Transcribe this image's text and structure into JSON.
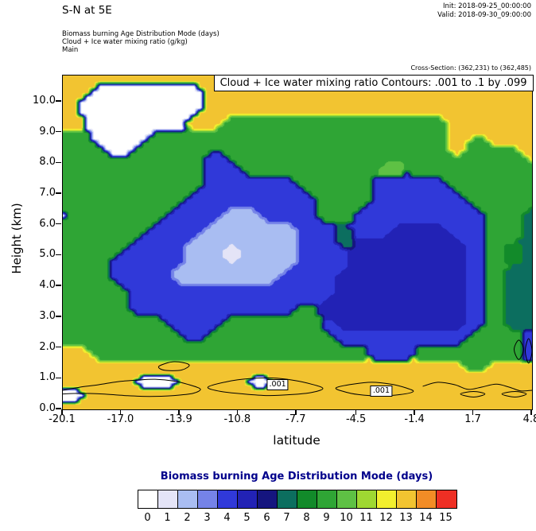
{
  "header": {
    "title": "S-N at 5E",
    "init": "Init: 2018-09-25_00:00:00",
    "valid": "Valid: 2018-09-30_09:00:00",
    "legend_lines": [
      "Biomass burning Age Distribution Mode   (days)",
      "Cloud + Ice water mixing ratio   (g/kg)",
      "Main"
    ],
    "cross_section": "Cross-Section: (362,231) to (362,485)"
  },
  "plot": {
    "inner_title": "Cloud + Ice water mixing ratio Contours: .001 to .1 by .099",
    "xlabel": "latitude",
    "ylabel": "Height (km)",
    "x_ticks": [
      "-20.1",
      "-17.0",
      "-13.9",
      "-10.8",
      "-7.7",
      "-4.5",
      "-1.4",
      "1.7",
      "4.8"
    ],
    "y_ticks": [
      "0.0",
      "1.0",
      "2.0",
      "3.0",
      "4.0",
      "5.0",
      "6.0",
      "7.0",
      "8.0",
      "9.0",
      "10.0"
    ]
  },
  "colorbar": {
    "title": "Biomass burning Age Distribution Mode  (days)",
    "title_color": "#00008b",
    "values": [
      "0",
      "1",
      "2",
      "3",
      "4",
      "5",
      "6",
      "7",
      "8",
      "9",
      "10",
      "11",
      "12",
      "13",
      "14",
      "15"
    ]
  },
  "chart_data": {
    "type": "filled-contour",
    "title": "Biomass burning Age Distribution Mode (days), S-N cross-section at 5E",
    "xlabel": "latitude",
    "ylabel": "Height (km)",
    "x_range": [
      -20.1,
      4.8
    ],
    "y_range": [
      0,
      10.85
    ],
    "levels": [
      0,
      1,
      2,
      3,
      4,
      5,
      6,
      7,
      8,
      9,
      10,
      11,
      12,
      13,
      14,
      15
    ],
    "palette": [
      "#ffffff",
      "#e4e4f7",
      "#a9bdf2",
      "#7583e8",
      "#3039d9",
      "#2222b5",
      "#15157f",
      "#0c6e5f",
      "#128a2a",
      "#2fa535",
      "#5ec144",
      "#9fd832",
      "#f2ef2e",
      "#f2c431",
      "#f28c26",
      "#ee2f24"
    ],
    "grid": {
      "lat_range": [
        -20.1,
        4.8
      ],
      "heights": [
        10.85,
        10.3,
        9.8,
        9.3,
        8.8,
        8.3,
        7.8,
        7.3,
        6.8,
        6.3,
        5.8,
        5.3,
        4.8,
        4.3,
        3.8,
        3.3,
        2.8,
        2.3,
        1.8,
        1.3,
        0.9,
        0.45,
        0
      ],
      "values": [
        [
          13,
          13,
          13,
          13,
          13,
          13,
          13,
          13,
          13,
          13,
          13,
          13,
          13,
          13,
          13,
          13,
          13,
          13,
          13,
          13,
          13,
          13,
          13,
          13,
          13,
          13
        ],
        [
          13,
          13,
          0,
          0,
          0,
          0,
          0,
          0,
          13,
          13,
          13,
          13,
          13,
          13,
          13,
          13,
          13,
          13,
          13,
          13,
          13,
          13,
          13,
          13,
          13,
          13
        ],
        [
          13,
          0,
          0,
          0,
          0,
          0,
          0,
          0,
          13,
          13,
          13,
          13,
          13,
          13,
          13,
          13,
          13,
          13,
          13,
          13,
          13,
          13,
          13,
          13,
          13,
          13
        ],
        [
          13,
          13,
          0,
          0,
          0,
          0,
          0,
          13,
          13,
          9,
          9,
          9,
          9,
          9,
          9,
          9,
          9,
          9,
          9,
          9,
          9,
          13,
          13,
          13,
          13,
          13
        ],
        [
          9,
          9,
          0,
          0,
          0,
          9,
          9,
          9,
          9,
          9,
          9,
          9,
          9,
          9,
          9,
          9,
          9,
          9,
          9,
          9,
          9,
          13,
          9,
          13,
          13,
          13
        ],
        [
          9,
          9,
          9,
          0,
          9,
          9,
          9,
          9,
          4,
          9,
          9,
          9,
          9,
          9,
          9,
          9,
          9,
          9,
          9,
          9,
          9,
          13,
          9,
          9,
          9,
          13
        ],
        [
          9,
          9,
          9,
          9,
          9,
          9,
          9,
          9,
          4,
          4,
          9,
          9,
          9,
          9,
          9,
          9,
          9,
          10,
          10,
          9,
          9,
          9,
          9,
          9,
          9,
          9
        ],
        [
          9,
          9,
          9,
          9,
          9,
          9,
          9,
          9,
          4,
          4,
          4,
          4,
          4,
          9,
          9,
          9,
          9,
          4,
          4,
          4,
          4,
          9,
          9,
          9,
          9,
          9
        ],
        [
          9,
          9,
          9,
          9,
          9,
          9,
          9,
          4,
          4,
          4,
          4,
          4,
          4,
          4,
          9,
          9,
          9,
          4,
          4,
          4,
          4,
          4,
          9,
          9,
          9,
          9
        ],
        [
          0,
          9,
          9,
          9,
          9,
          9,
          4,
          4,
          4,
          2,
          2,
          4,
          4,
          4,
          9,
          9,
          4,
          4,
          4,
          4,
          4,
          4,
          4,
          9,
          9,
          7
        ],
        [
          9,
          9,
          9,
          9,
          9,
          4,
          4,
          4,
          2,
          2,
          2,
          2,
          2,
          4,
          4,
          7,
          4,
          4,
          5,
          5,
          5,
          4,
          4,
          9,
          9,
          7
        ],
        [
          9,
          9,
          9,
          9,
          4,
          4,
          4,
          2,
          2,
          1,
          2,
          2,
          2,
          4,
          4,
          7,
          5,
          5,
          5,
          5,
          5,
          5,
          4,
          9,
          8,
          7
        ],
        [
          9,
          9,
          9,
          4,
          4,
          4,
          4,
          2,
          2,
          1,
          2,
          2,
          2,
          4,
          4,
          4,
          5,
          5,
          5,
          5,
          5,
          5,
          4,
          9,
          8,
          7
        ],
        [
          9,
          9,
          9,
          4,
          4,
          4,
          2,
          2,
          2,
          2,
          2,
          2,
          4,
          4,
          4,
          5,
          5,
          5,
          1,
          5,
          5,
          5,
          4,
          9,
          7,
          7
        ],
        [
          9,
          9,
          9,
          9,
          4,
          4,
          4,
          4,
          4,
          4,
          4,
          4,
          4,
          4,
          4,
          5,
          5,
          5,
          5,
          5,
          5,
          5,
          4,
          9,
          7,
          7
        ],
        [
          9,
          9,
          9,
          9,
          4,
          4,
          4,
          4,
          4,
          4,
          4,
          4,
          4,
          9,
          5,
          5,
          5,
          5,
          5,
          5,
          5,
          5,
          4,
          9,
          7,
          7
        ],
        [
          9,
          9,
          9,
          9,
          9,
          9,
          4,
          4,
          4,
          9,
          9,
          9,
          9,
          9,
          4,
          5,
          5,
          5,
          5,
          5,
          5,
          5,
          4,
          9,
          7,
          7
        ],
        [
          9,
          9,
          9,
          9,
          9,
          9,
          9,
          4,
          9,
          9,
          9,
          9,
          9,
          9,
          9,
          4,
          4,
          4,
          4,
          4,
          4,
          4,
          9,
          9,
          9,
          4
        ],
        [
          13,
          13,
          9,
          9,
          9,
          9,
          9,
          9,
          9,
          9,
          9,
          9,
          9,
          9,
          9,
          9,
          9,
          4,
          4,
          9,
          9,
          9,
          9,
          9,
          9,
          4
        ],
        [
          13,
          13,
          13,
          13,
          13,
          13,
          13,
          13,
          13,
          13,
          13,
          13,
          13,
          13,
          13,
          13,
          13,
          13,
          13,
          13,
          13,
          13,
          9,
          13,
          13,
          13
        ],
        [
          13,
          13,
          13,
          13,
          0,
          0,
          0,
          13,
          13,
          13,
          0,
          0,
          13,
          13,
          13,
          13,
          13,
          13,
          13,
          13,
          13,
          13,
          13,
          13,
          13,
          13
        ],
        [
          0,
          0,
          13,
          13,
          13,
          13,
          13,
          13,
          13,
          13,
          13,
          13,
          13,
          13,
          13,
          13,
          13,
          13,
          13,
          13,
          13,
          13,
          13,
          13,
          13,
          13
        ],
        [
          13,
          13,
          13,
          13,
          13,
          13,
          13,
          13,
          13,
          13,
          13,
          13,
          13,
          13,
          13,
          13,
          13,
          13,
          13,
          13,
          13,
          13,
          13,
          13,
          13,
          13
        ]
      ]
    },
    "contour_overlay": {
      "variable": "Cloud + Ice water mixing ratio (g/kg)",
      "levels_text": ".001 to .1 by .099",
      "paths": [
        {
          "closed": false,
          "pts": [
            [
              -20.1,
              0.62
            ],
            [
              -19.2,
              0.72
            ],
            [
              -18.2,
              0.8
            ],
            [
              -17.2,
              0.9
            ],
            [
              -16.2,
              0.95
            ],
            [
              -15.2,
              0.98
            ],
            [
              -14.2,
              0.92
            ],
            [
              -13.4,
              0.8
            ],
            [
              -12.8,
              0.66
            ],
            [
              -13.2,
              0.52
            ],
            [
              -14.2,
              0.45
            ],
            [
              -15.5,
              0.42
            ],
            [
              -16.8,
              0.45
            ],
            [
              -18.0,
              0.5
            ],
            [
              -19.2,
              0.52
            ],
            [
              -20.1,
              0.5
            ]
          ]
        },
        {
          "closed": true,
          "pts": [
            [
              -12.4,
              0.72
            ],
            [
              -11.4,
              0.9
            ],
            [
              -10.2,
              1.0
            ],
            [
              -9.0,
              1.02
            ],
            [
              -7.9,
              0.95
            ],
            [
              -6.9,
              0.82
            ],
            [
              -6.3,
              0.68
            ],
            [
              -6.9,
              0.55
            ],
            [
              -8.0,
              0.48
            ],
            [
              -9.2,
              0.45
            ],
            [
              -10.5,
              0.5
            ],
            [
              -11.7,
              0.58
            ]
          ]
        },
        {
          "closed": true,
          "pts": [
            [
              -5.6,
              0.7
            ],
            [
              -4.7,
              0.82
            ],
            [
              -3.7,
              0.88
            ],
            [
              -2.7,
              0.82
            ],
            [
              -1.9,
              0.7
            ],
            [
              -1.5,
              0.58
            ],
            [
              -2.2,
              0.48
            ],
            [
              -3.3,
              0.44
            ],
            [
              -4.4,
              0.48
            ],
            [
              -5.2,
              0.58
            ]
          ]
        },
        {
          "closed": false,
          "pts": [
            [
              -1.0,
              0.75
            ],
            [
              -0.2,
              0.88
            ],
            [
              0.7,
              0.8
            ],
            [
              1.4,
              0.65
            ],
            [
              2.1,
              0.72
            ],
            [
              2.9,
              0.82
            ],
            [
              3.6,
              0.72
            ],
            [
              4.2,
              0.6
            ],
            [
              4.8,
              0.62
            ]
          ]
        },
        {
          "closed": true,
          "pts": [
            [
              -15.0,
              1.4
            ],
            [
              -14.2,
              1.55
            ],
            [
              -13.4,
              1.45
            ],
            [
              -13.8,
              1.28
            ],
            [
              -14.7,
              1.27
            ]
          ]
        },
        {
          "closed": true,
          "pts": [
            [
              4.1,
              2.25
            ],
            [
              4.35,
              1.95
            ],
            [
              4.1,
              1.62
            ],
            [
              3.85,
              1.95
            ]
          ]
        },
        {
          "closed": true,
          "pts": [
            [
              4.62,
              2.3
            ],
            [
              4.8,
              1.9
            ],
            [
              4.62,
              1.5
            ],
            [
              4.44,
              1.9
            ]
          ]
        },
        {
          "closed": true,
          "pts": [
            [
              1.0,
              0.5
            ],
            [
              1.7,
              0.58
            ],
            [
              2.3,
              0.5
            ],
            [
              1.7,
              0.4
            ]
          ]
        },
        {
          "closed": true,
          "pts": [
            [
              3.2,
              0.5
            ],
            [
              3.9,
              0.58
            ],
            [
              4.5,
              0.5
            ],
            [
              3.9,
              0.4
            ]
          ]
        }
      ],
      "labels": [
        {
          "text": ".001",
          "lat": -8.7,
          "h": 0.8
        },
        {
          "text": ".001",
          "lat": -3.2,
          "h": 0.6
        }
      ]
    }
  }
}
